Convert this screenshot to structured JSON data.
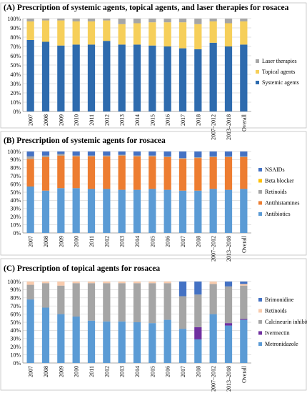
{
  "chart_data": [
    {
      "type": "bar",
      "title": "(A) Prescription of systemic agents, topical agents, and laser therapies for rosacea",
      "xlabel": "",
      "ylabel": "",
      "ylim": [
        0,
        100
      ],
      "grid": true,
      "stacked": true,
      "percent_axis": true,
      "legend_position": "right",
      "categories": [
        "2007",
        "2008",
        "2009",
        "2010",
        "2011",
        "2012",
        "2013",
        "2014",
        "2015",
        "2016",
        "2017",
        "2018",
        "2007–2012",
        "2013–2018",
        "Overall"
      ],
      "series": [
        {
          "name": "Systemic agents",
          "color": "#2E6BAE",
          "values": [
            77,
            75,
            71,
            72,
            72,
            76,
            72,
            72,
            71,
            70,
            68,
            67,
            74,
            70,
            72
          ]
        },
        {
          "name": "Topical agents",
          "color": "#F6CF5A",
          "values": [
            20,
            23,
            27,
            25,
            25,
            22,
            22,
            23,
            25,
            26,
            28,
            27,
            23,
            25,
            25
          ]
        },
        {
          "name": "Laser therapies",
          "color": "#A6A6A6",
          "values": [
            3,
            2,
            2,
            3,
            3,
            2,
            6,
            5,
            4,
            4,
            4,
            6,
            3,
            5,
            3
          ]
        }
      ]
    },
    {
      "type": "bar",
      "title": "(B) Prescription of systemic agents for rosacea",
      "xlabel": "",
      "ylabel": "",
      "ylim": [
        0,
        100
      ],
      "grid": true,
      "stacked": true,
      "percent_axis": true,
      "legend_position": "right",
      "categories": [
        "2007",
        "2008",
        "2009",
        "2010",
        "2011",
        "2012",
        "2013",
        "2014",
        "2015",
        "2016",
        "2017",
        "2018",
        "2007–2012",
        "2013–2018",
        "Overall"
      ],
      "series": [
        {
          "name": "Antibiotics",
          "color": "#5B9BD5",
          "values": [
            57,
            52,
            55,
            55,
            54,
            54,
            53,
            53,
            54,
            53,
            52,
            52,
            54,
            53,
            54
          ]
        },
        {
          "name": "Antihistamines",
          "color": "#ED7D31",
          "values": [
            34,
            41,
            40,
            39,
            40,
            40,
            42,
            41,
            40,
            40,
            39,
            40,
            39,
            40,
            39
          ]
        },
        {
          "name": "Retinoids",
          "color": "#A5A5A5",
          "values": [
            3,
            2,
            2,
            1,
            1,
            1,
            1,
            1,
            1,
            1,
            1,
            1,
            1,
            1,
            1
          ]
        },
        {
          "name": "Beta blocker",
          "color": "#FFC000",
          "values": [
            0,
            0,
            0,
            0,
            0,
            0,
            0,
            0,
            0,
            0,
            0,
            0,
            0,
            0,
            0
          ]
        },
        {
          "name": "NSAIDs",
          "color": "#4472C4",
          "values": [
            6,
            5,
            3,
            5,
            5,
            5,
            4,
            5,
            5,
            6,
            8,
            7,
            6,
            6,
            6
          ]
        }
      ]
    },
    {
      "type": "bar",
      "title": "(C) Prescription of topical agents for rosacea",
      "xlabel": "",
      "ylabel": "",
      "ylim": [
        0,
        100
      ],
      "grid": true,
      "stacked": true,
      "percent_axis": true,
      "legend_position": "right",
      "categories": [
        "2007",
        "2008",
        "2009",
        "2010",
        "2011",
        "2012",
        "2013",
        "2014",
        "2015",
        "2016",
        "2017",
        "2018",
        "2007–2012",
        "2013–2018",
        "Overall"
      ],
      "series": [
        {
          "name": "Metronidazole",
          "color": "#5B9BD5",
          "values": [
            78,
            68,
            60,
            57,
            52,
            51,
            51,
            50,
            49,
            53,
            42,
            29,
            60,
            46,
            53
          ]
        },
        {
          "name": "Ivermectin",
          "color": "#7030A0",
          "values": [
            0,
            0,
            0,
            0,
            0,
            0,
            0,
            0,
            0,
            0,
            0,
            15,
            0,
            3,
            1
          ]
        },
        {
          "name": "Calcineurin inhibitors",
          "color": "#A5A5A5",
          "values": [
            18,
            30,
            35,
            41,
            46,
            47,
            47,
            48,
            49,
            45,
            40,
            40,
            37,
            45,
            41
          ]
        },
        {
          "name": "Retinoids",
          "color": "#F8CBAD",
          "values": [
            4,
            2,
            5,
            2,
            2,
            2,
            2,
            2,
            2,
            2,
            0,
            0,
            3,
            0,
            2
          ]
        },
        {
          "name": "Brimonidine",
          "color": "#4472C4",
          "values": [
            0,
            0,
            0,
            0,
            0,
            0,
            0,
            0,
            0,
            0,
            18,
            16,
            0,
            6,
            3
          ]
        }
      ]
    }
  ]
}
